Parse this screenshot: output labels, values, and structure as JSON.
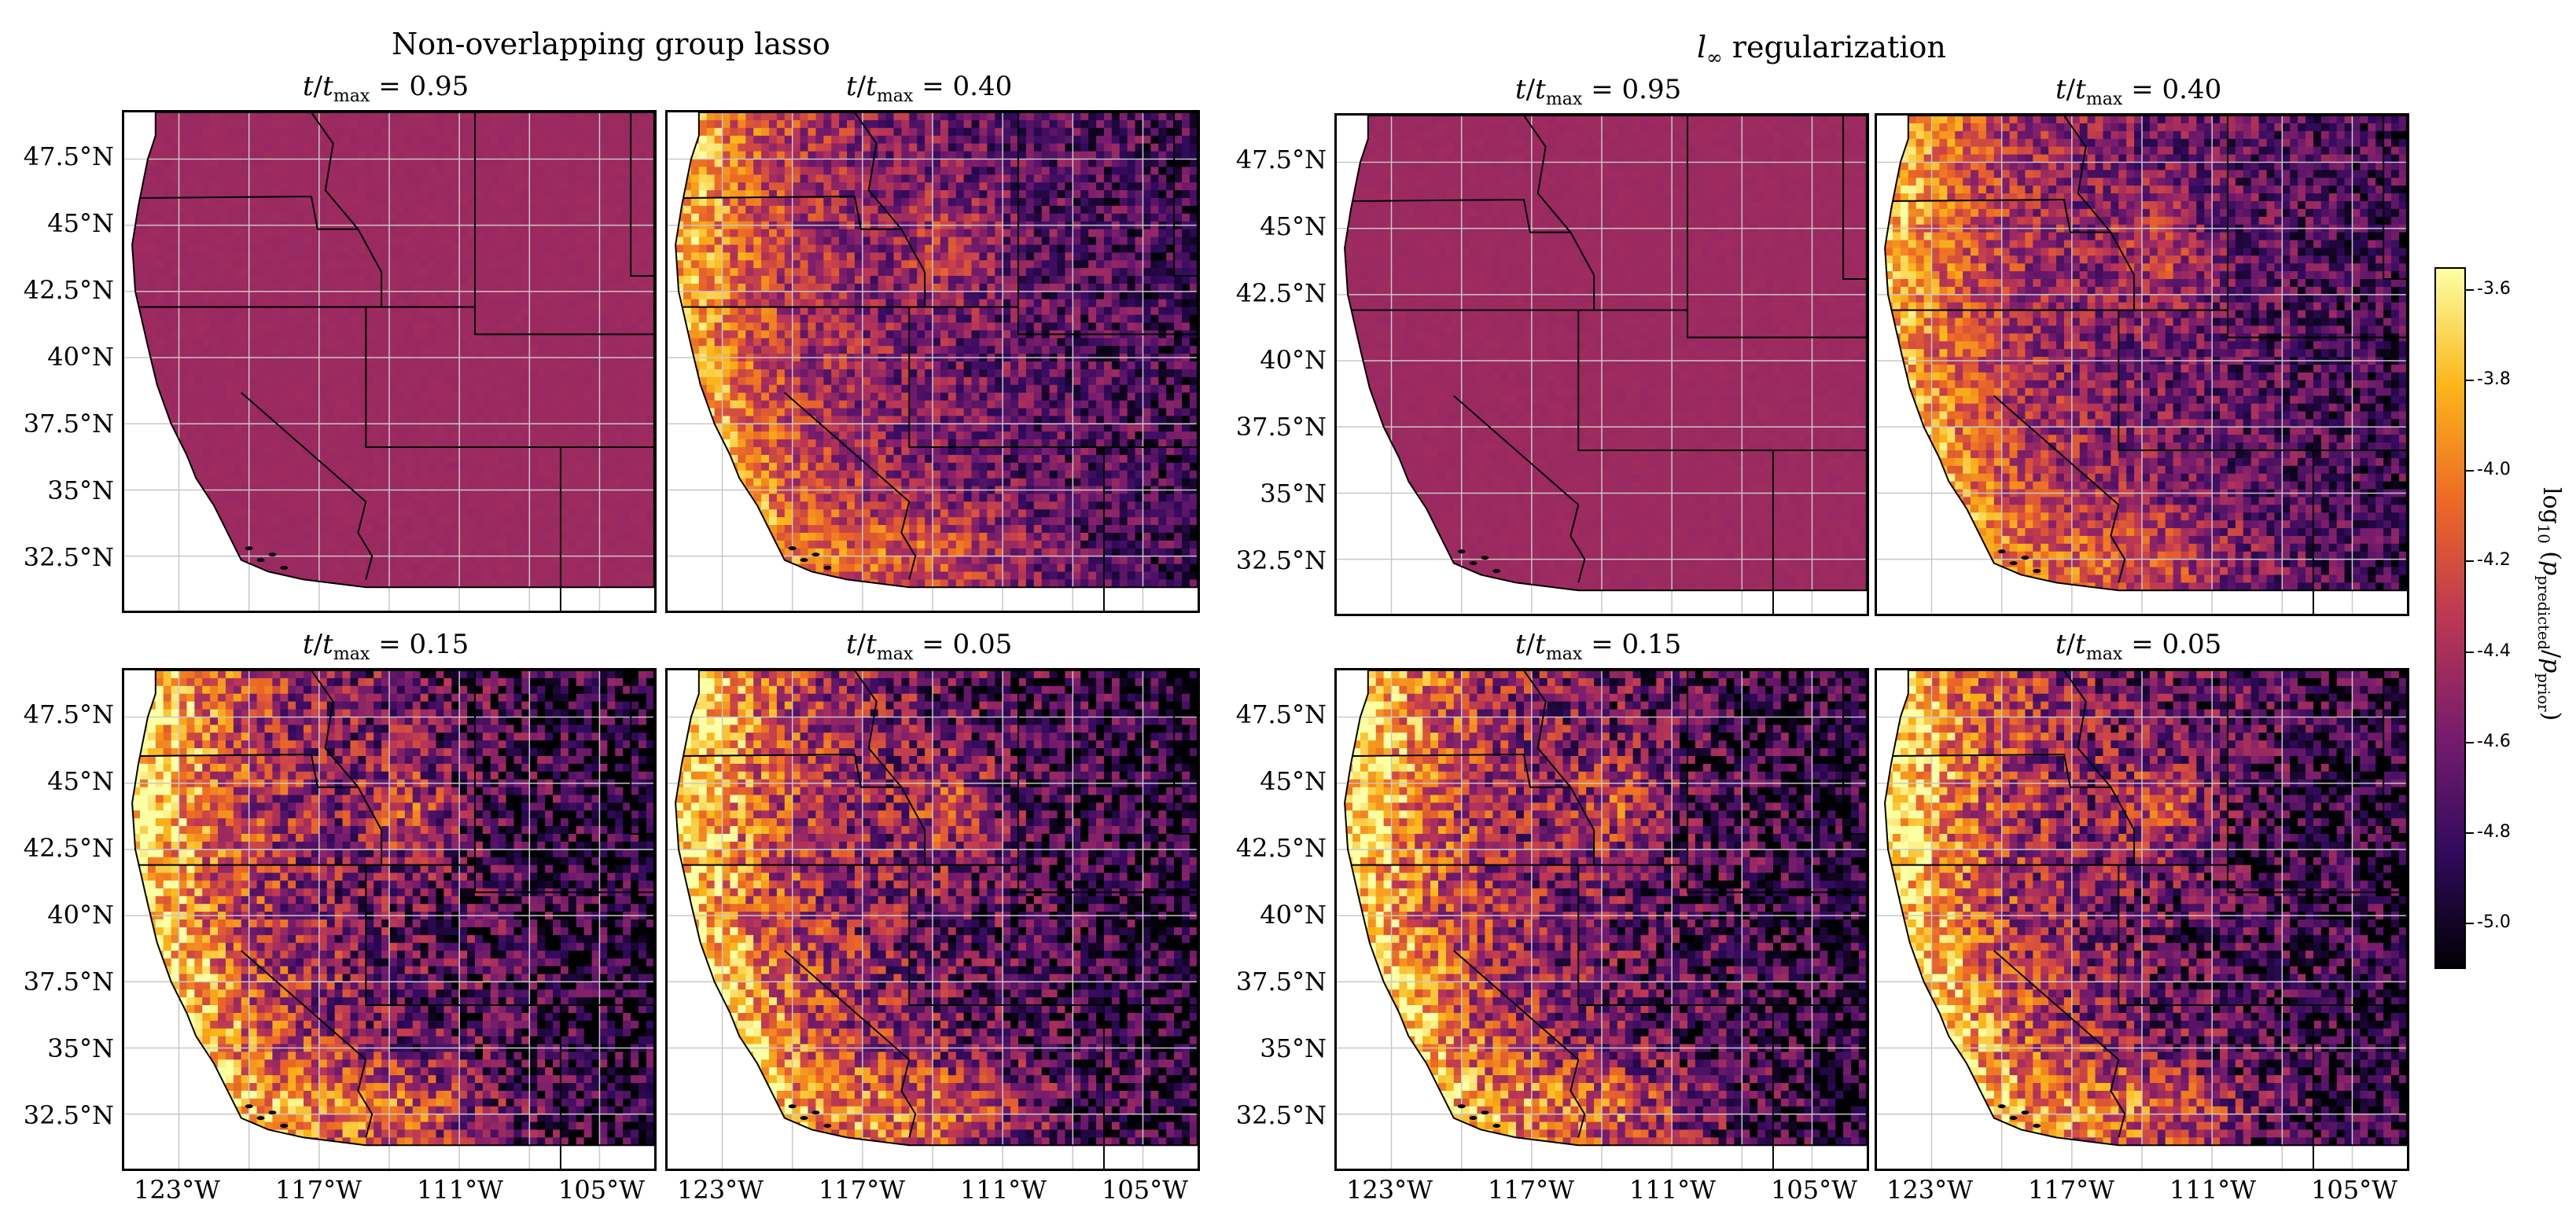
{
  "groups": [
    {
      "title": "Non-overlapping group lasso",
      "panels": [
        {
          "label": "t/t_max = 0.95",
          "ratio": 0.95
        },
        {
          "label": "t/t_max = 0.40",
          "ratio": 0.4
        },
        {
          "label": "t/t_max = 0.15",
          "ratio": 0.15
        },
        {
          "label": "t/t_max = 0.05",
          "ratio": 0.05
        }
      ]
    },
    {
      "title": "l∞ regularization",
      "panels": [
        {
          "label": "t/t_max = 0.95",
          "ratio": 0.95
        },
        {
          "label": "t/t_max = 0.40",
          "ratio": 0.4
        },
        {
          "label": "t/t_max = 0.15",
          "ratio": 0.15
        },
        {
          "label": "t/t_max = 0.05",
          "ratio": 0.05
        }
      ]
    }
  ],
  "lat_ticks": [
    "47.5°N",
    "45°N",
    "42.5°N",
    "40°N",
    "37.5°N",
    "35°N",
    "32.5°N"
  ],
  "lon_ticks": [
    "123°W",
    "117°W",
    "111°W",
    "105°W"
  ],
  "colorbar": {
    "label": "log10 (p_predicted / p_prior)",
    "ticks": [
      "-3.6",
      "-3.8",
      "-4.0",
      "-4.2",
      "-4.4",
      "-4.6",
      "-4.8",
      "-5.0"
    ],
    "min": -5.1,
    "max": -3.55,
    "colormap": "inferno",
    "colors": [
      "#000004",
      "#320a5e",
      "#781c6d",
      "#bc3754",
      "#ed6925",
      "#fbb61a",
      "#fcffa4"
    ]
  }
}
